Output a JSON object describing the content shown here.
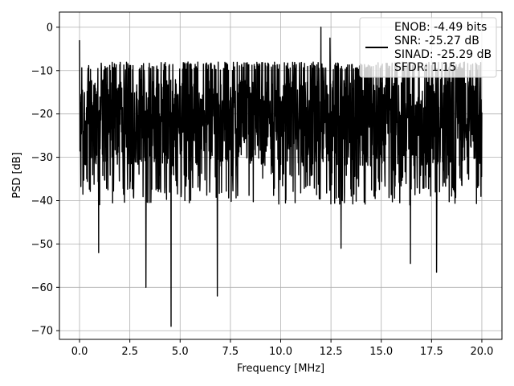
{
  "chart_data": {
    "type": "line",
    "xlabel": "Frequency [MHz]",
    "ylabel": "PSD [dB]",
    "xlim": [
      -1.0,
      21.0
    ],
    "ylim": [
      -72.0,
      3.5
    ],
    "xticks": [
      0.0,
      2.5,
      5.0,
      7.5,
      10.0,
      12.5,
      15.0,
      17.5,
      20.0
    ],
    "xtick_labels": [
      "0.0",
      "2.5",
      "5.0",
      "7.5",
      "10.0",
      "12.5",
      "15.0",
      "17.5",
      "20.0"
    ],
    "yticks": [
      0,
      -10,
      -20,
      -30,
      -40,
      -50,
      -60,
      -70
    ],
    "ytick_labels": [
      "0",
      "−10",
      "−20",
      "−30",
      "−40",
      "−50",
      "−60",
      "−70"
    ],
    "grid": true,
    "legend_position": "top-right",
    "series_color": "#000000",
    "series": [
      {
        "x_range": [
          0.0,
          20.0
        ],
        "y_band": [
          -33,
          -10
        ],
        "notable_points": [
          {
            "x": 0.0,
            "y": -3.0
          },
          {
            "x": 0.95,
            "y": -52.0
          },
          {
            "x": 3.3,
            "y": -60.0
          },
          {
            "x": 4.55,
            "y": -69.0
          },
          {
            "x": 6.85,
            "y": -62.0
          },
          {
            "x": 12.0,
            "y": 0.0
          },
          {
            "x": 12.45,
            "y": -2.5
          },
          {
            "x": 13.0,
            "y": -51.0
          },
          {
            "x": 16.45,
            "y": -54.5
          },
          {
            "x": 17.75,
            "y": -56.5
          }
        ]
      }
    ],
    "legend": {
      "lines": [
        "ENOB: -4.49 bits",
        "SNR: -25.27 dB",
        "SINAD: -25.29 dB",
        "SFDR: 1.15"
      ]
    }
  }
}
